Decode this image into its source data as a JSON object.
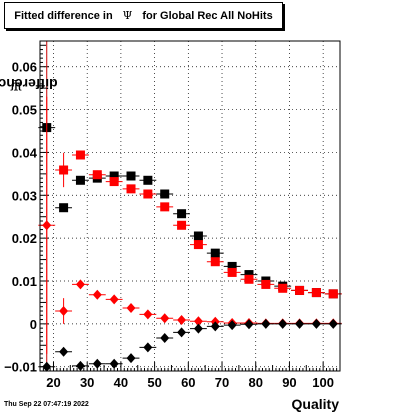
{
  "chart_data": {
    "type": "scatter",
    "title": {
      "prefix": "Fitted difference in",
      "symbol": "Ψ",
      "suffix": "for Global Rec All NoHits"
    },
    "xlabel": "Quality",
    "ylabel": {
      "prefix": "difference in",
      "symbol": "Ψ"
    },
    "xlim": [
      16,
      105
    ],
    "ylim": [
      -0.011,
      0.066
    ],
    "xticks": [
      20,
      30,
      40,
      50,
      60,
      70,
      80,
      90,
      100
    ],
    "xtick_labels": [
      "20",
      "30",
      "40",
      "50",
      "60",
      "70",
      "80",
      "90",
      "100"
    ],
    "yticks": [
      -0.01,
      0,
      0.01,
      0.02,
      0.03,
      0.04,
      0.05,
      0.06
    ],
    "ytick_labels": [
      "−0.01",
      "0",
      "0.01",
      "0.02",
      "0.03",
      "0.04",
      "0.05",
      "0.06"
    ],
    "grid": true,
    "x_bin_halfwidth": 2.5,
    "series": [
      {
        "marker": "square",
        "color": "#000000",
        "points": [
          {
            "x": 18,
            "y": 0.0458,
            "err": 0.0
          },
          {
            "x": 23,
            "y": 0.0271,
            "err": 0.0
          },
          {
            "x": 28,
            "y": 0.0335,
            "err": 0.0
          },
          {
            "x": 33,
            "y": 0.034,
            "err": 0.0
          },
          {
            "x": 38,
            "y": 0.0345,
            "err": 0.0
          },
          {
            "x": 43,
            "y": 0.0345,
            "err": 0.0
          },
          {
            "x": 48,
            "y": 0.0335,
            "err": 0.0
          },
          {
            "x": 53,
            "y": 0.0303,
            "err": 0.0
          },
          {
            "x": 58,
            "y": 0.0257,
            "err": 0.0
          },
          {
            "x": 63,
            "y": 0.0205,
            "err": 0.0
          },
          {
            "x": 68,
            "y": 0.0165,
            "err": 0.0
          },
          {
            "x": 73,
            "y": 0.0134,
            "err": 0.0
          },
          {
            "x": 78,
            "y": 0.0115,
            "err": 0.0
          },
          {
            "x": 83,
            "y": 0.01,
            "err": 0.0
          },
          {
            "x": 88,
            "y": 0.0088,
            "err": 0.0
          },
          {
            "x": 93,
            "y": 0.0078,
            "err": 0.0
          },
          {
            "x": 98,
            "y": 0.0073,
            "err": 0.0
          },
          {
            "x": 103,
            "y": 0.007,
            "err": 0.0
          }
        ]
      },
      {
        "marker": "square",
        "color": "#ff0000",
        "points": [
          {
            "x": 23,
            "y": 0.0359,
            "err": 0.004
          },
          {
            "x": 28,
            "y": 0.0394,
            "err": 0.001
          },
          {
            "x": 33,
            "y": 0.0348,
            "err": 0.001
          },
          {
            "x": 38,
            "y": 0.0332,
            "err": 0.0
          },
          {
            "x": 43,
            "y": 0.0315,
            "err": 0.0
          },
          {
            "x": 48,
            "y": 0.0303,
            "err": 0.0
          },
          {
            "x": 53,
            "y": 0.0273,
            "err": 0.0
          },
          {
            "x": 58,
            "y": 0.023,
            "err": 0.0
          },
          {
            "x": 63,
            "y": 0.0185,
            "err": 0.0
          },
          {
            "x": 68,
            "y": 0.0145,
            "err": 0.0
          },
          {
            "x": 73,
            "y": 0.012,
            "err": 0.0
          },
          {
            "x": 78,
            "y": 0.0104,
            "err": 0.0
          },
          {
            "x": 83,
            "y": 0.0092,
            "err": 0.0
          },
          {
            "x": 88,
            "y": 0.0083,
            "err": 0.0
          },
          {
            "x": 93,
            "y": 0.0078,
            "err": 0.0
          },
          {
            "x": 98,
            "y": 0.0073,
            "err": 0.0
          },
          {
            "x": 103,
            "y": 0.007,
            "err": 0.0
          }
        ]
      },
      {
        "marker": "diamond",
        "color": "#ff0000",
        "points": [
          {
            "x": 18,
            "y": 0.023,
            "err": 0.03
          },
          {
            "x": 23,
            "y": 0.003,
            "err": 0.003
          },
          {
            "x": 28,
            "y": 0.0092,
            "err": 0.0
          },
          {
            "x": 33,
            "y": 0.0068,
            "err": 0.0
          },
          {
            "x": 38,
            "y": 0.0057,
            "err": 0.0
          },
          {
            "x": 43,
            "y": 0.0037,
            "err": 0.0
          },
          {
            "x": 48,
            "y": 0.0022,
            "err": 0.0
          },
          {
            "x": 53,
            "y": 0.0013,
            "err": 0.0
          },
          {
            "x": 58,
            "y": 0.0009,
            "err": 0.0
          },
          {
            "x": 63,
            "y": 0.0006,
            "err": 0.0
          },
          {
            "x": 68,
            "y": 0.0005,
            "err": 0.0
          },
          {
            "x": 73,
            "y": 0.0002,
            "err": 0.0
          },
          {
            "x": 78,
            "y": 0.0002,
            "err": 0.0
          },
          {
            "x": 83,
            "y": 0.0001,
            "err": 0.0
          },
          {
            "x": 88,
            "y": 0.0001,
            "err": 0.0
          },
          {
            "x": 93,
            "y": 0.0001,
            "err": 0.0
          },
          {
            "x": 98,
            "y": 0.0001,
            "err": 0.0
          },
          {
            "x": 103,
            "y": 0.0001,
            "err": 0.0
          }
        ]
      },
      {
        "marker": "diamond",
        "color": "#000000",
        "points": [
          {
            "x": 18,
            "y": -0.01,
            "err": 0.0
          },
          {
            "x": 23,
            "y": -0.0065,
            "err": 0.0
          },
          {
            "x": 28,
            "y": -0.0098,
            "err": 0.0
          },
          {
            "x": 33,
            "y": -0.0093,
            "err": 0.0
          },
          {
            "x": 38,
            "y": -0.0093,
            "err": 0.0
          },
          {
            "x": 43,
            "y": -0.008,
            "err": 0.0
          },
          {
            "x": 48,
            "y": -0.0055,
            "err": 0.0
          },
          {
            "x": 53,
            "y": -0.0033,
            "err": 0.0
          },
          {
            "x": 58,
            "y": -0.002,
            "err": 0.0
          },
          {
            "x": 63,
            "y": -0.0011,
            "err": 0.0
          },
          {
            "x": 68,
            "y": -0.0006,
            "err": 0.0
          },
          {
            "x": 73,
            "y": -0.0003,
            "err": 0.0
          },
          {
            "x": 78,
            "y": -0.0001,
            "err": 0.0
          },
          {
            "x": 83,
            "y": 0.0,
            "err": 0.0
          },
          {
            "x": 88,
            "y": 0.0,
            "err": 0.0
          },
          {
            "x": 93,
            "y": 0.0,
            "err": 0.0
          },
          {
            "x": 98,
            "y": 0.0,
            "err": 0.0
          },
          {
            "x": 103,
            "y": 0.0,
            "err": 0.0
          }
        ]
      }
    ],
    "left_line": {
      "x": 18,
      "color": "#cc0000"
    }
  },
  "timestamp": "Thu Sep 22 07:47:19 2022"
}
